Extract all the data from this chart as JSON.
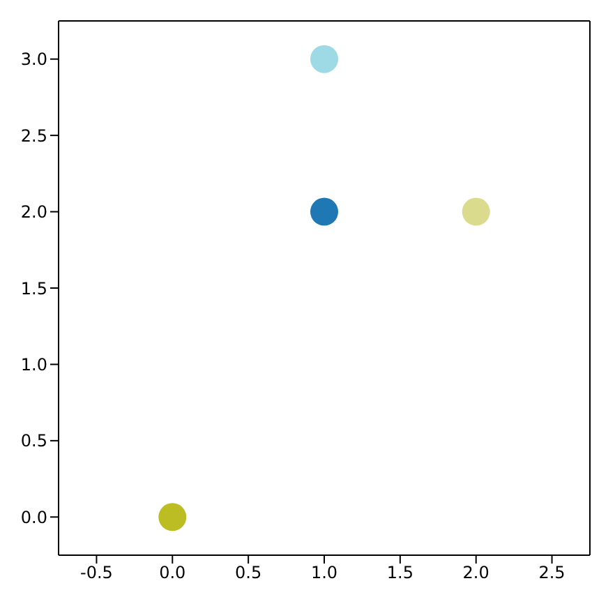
{
  "chart_data": {
    "type": "scatter",
    "x": [
      0,
      1,
      1,
      2
    ],
    "values": [
      0,
      2,
      3,
      2
    ],
    "colors": [
      "#bcbd22",
      "#1f77b4",
      "#9edae5",
      "#dbdb8d"
    ],
    "xlim": [
      -0.75,
      2.75
    ],
    "xticks": [
      -0.5,
      {
        "value": 0,
        "label": "0.0"
      },
      0.5,
      {
        "value": 1,
        "label": "1.0"
      },
      1.5,
      {
        "value": 2,
        "label": "2.0"
      },
      2.5
    ],
    "ylim": [
      -0.25,
      3.25
    ],
    "yticks": [
      {
        "value": 0,
        "label": "0.0"
      },
      0.5,
      {
        "value": 1,
        "label": "1.0"
      },
      1.5,
      {
        "value": 2,
        "label": "2.0"
      },
      2.5,
      {
        "value": 3,
        "label": "3.0"
      }
    ],
    "marker": "circle"
  }
}
